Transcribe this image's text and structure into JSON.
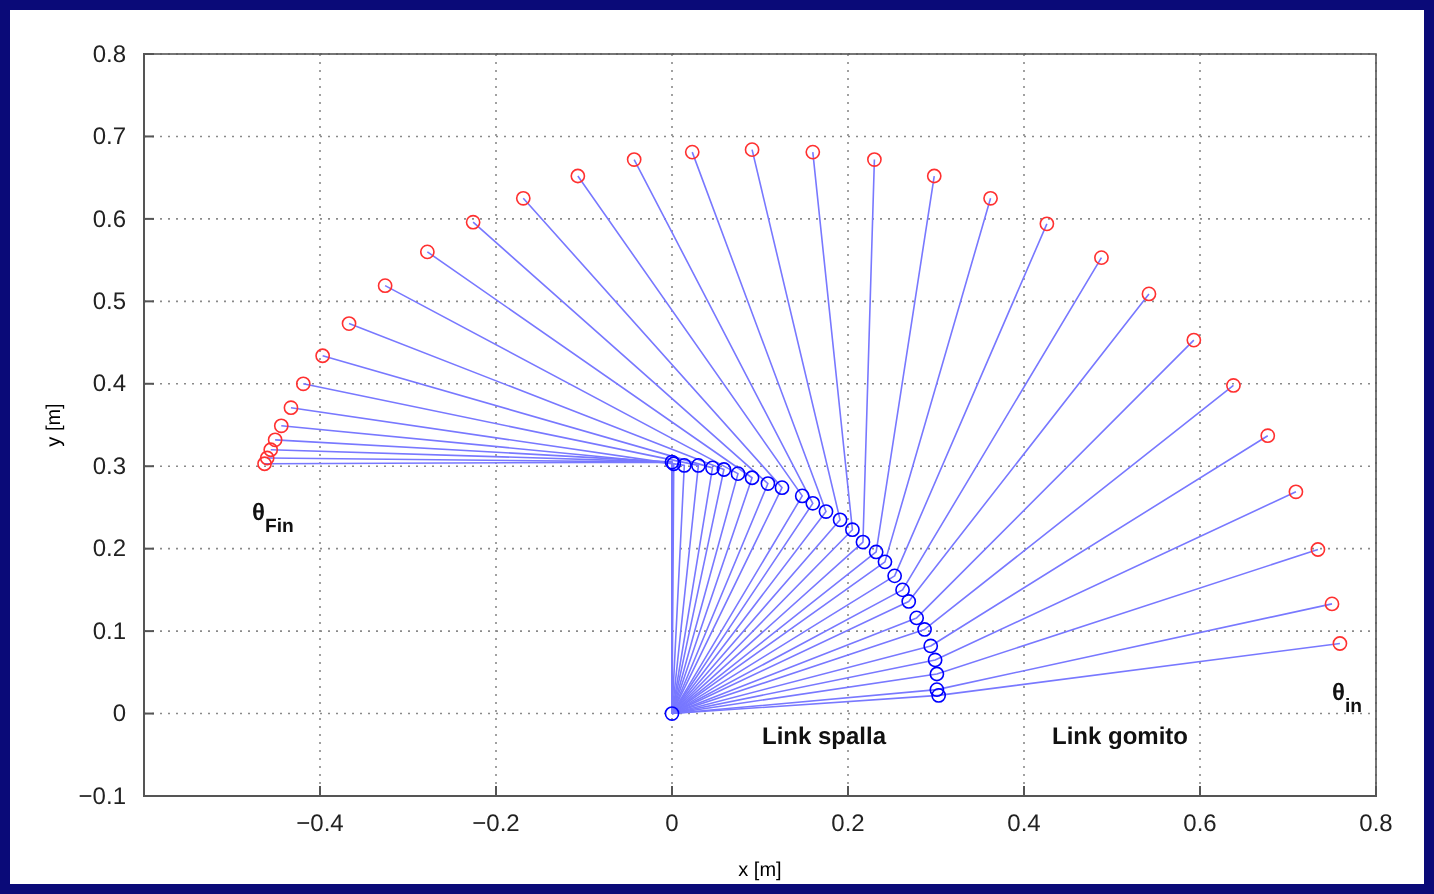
{
  "chart_data": {
    "type": "line",
    "xlabel": "x [m]",
    "ylabel": "y [m]",
    "xlim": [
      -0.6,
      0.8
    ],
    "xticks": [
      -0.4,
      -0.2,
      0,
      0.2,
      0.4,
      0.6,
      0.8
    ],
    "ylim": [
      -0.1,
      0.8
    ],
    "yticks": [
      -0.1,
      0,
      0.1,
      0.2,
      0.3,
      0.4,
      0.5,
      0.6,
      0.7,
      0.8
    ],
    "grid": true,
    "line_style": "solid",
    "annotations": [
      "θ$_{Fin}$",
      "Link spalla",
      "Link gomito",
      "θ$_{in}$"
    ],
    "series": [
      {
        "type": "line",
        "marker": "none",
        "color": "#7878ff",
        "x": [
          0,
          0.303,
          0.759
        ],
        "values": [
          0,
          0.022,
          0.085
        ]
      },
      {
        "type": "line",
        "marker": "none",
        "color": "#7878ff",
        "x": [
          0,
          0.301,
          0.75
        ],
        "values": [
          0,
          0.029,
          0.133
        ]
      },
      {
        "type": "line",
        "marker": "none",
        "color": "#7878ff",
        "x": [
          0,
          0.301,
          0.734
        ],
        "values": [
          0,
          0.048,
          0.199
        ]
      },
      {
        "type": "line",
        "marker": "none",
        "color": "#7878ff",
        "x": [
          0,
          0.299,
          0.709
        ],
        "values": [
          0,
          0.065,
          0.269
        ]
      },
      {
        "type": "line",
        "marker": "none",
        "color": "#7878ff",
        "x": [
          0,
          0.294,
          0.677
        ],
        "values": [
          0,
          0.082,
          0.337
        ]
      },
      {
        "type": "line",
        "marker": "none",
        "color": "#7878ff",
        "x": [
          0,
          0.287,
          0.638
        ],
        "values": [
          0,
          0.102,
          0.398
        ]
      },
      {
        "type": "line",
        "marker": "none",
        "color": "#7878ff",
        "x": [
          0,
          0.278,
          0.593
        ],
        "values": [
          0,
          0.116,
          0.453
        ]
      },
      {
        "type": "line",
        "marker": "none",
        "color": "#7878ff",
        "x": [
          0,
          0.269,
          0.542
        ],
        "values": [
          0,
          0.136,
          0.509
        ]
      },
      {
        "type": "line",
        "marker": "none",
        "color": "#7878ff",
        "x": [
          0,
          0.262,
          0.488
        ],
        "values": [
          0,
          0.15,
          0.553
        ]
      },
      {
        "type": "line",
        "marker": "none",
        "color": "#7878ff",
        "x": [
          0,
          0.253,
          0.426
        ],
        "values": [
          0,
          0.167,
          0.594
        ]
      },
      {
        "type": "line",
        "marker": "none",
        "color": "#7878ff",
        "x": [
          0,
          0.242,
          0.362
        ],
        "values": [
          0,
          0.184,
          0.625
        ]
      },
      {
        "type": "line",
        "marker": "none",
        "color": "#7878ff",
        "x": [
          0,
          0.232,
          0.298
        ],
        "values": [
          0,
          0.196,
          0.652
        ]
      },
      {
        "type": "line",
        "marker": "none",
        "color": "#7878ff",
        "x": [
          0,
          0.217,
          0.23
        ],
        "values": [
          0,
          0.208,
          0.672
        ]
      },
      {
        "type": "line",
        "marker": "none",
        "color": "#7878ff",
        "x": [
          0,
          0.205,
          0.16
        ],
        "values": [
          0,
          0.223,
          0.681
        ]
      },
      {
        "type": "line",
        "marker": "none",
        "color": "#7878ff",
        "x": [
          0,
          0.191,
          0.091
        ],
        "values": [
          0,
          0.235,
          0.684
        ]
      },
      {
        "type": "line",
        "marker": "none",
        "color": "#7878ff",
        "x": [
          0,
          0.175,
          0.023
        ],
        "values": [
          0,
          0.245,
          0.681
        ]
      },
      {
        "type": "line",
        "marker": "none",
        "color": "#7878ff",
        "x": [
          0,
          0.16,
          -0.043
        ],
        "values": [
          0,
          0.255,
          0.672
        ]
      },
      {
        "type": "line",
        "marker": "none",
        "color": "#7878ff",
        "x": [
          0,
          0.148,
          -0.107
        ],
        "values": [
          0,
          0.264,
          0.652
        ]
      },
      {
        "type": "line",
        "marker": "none",
        "color": "#7878ff",
        "x": [
          0,
          0.125,
          -0.169
        ],
        "values": [
          0,
          0.274,
          0.625
        ]
      },
      {
        "type": "line",
        "marker": "none",
        "color": "#7878ff",
        "x": [
          0,
          0.109,
          -0.226
        ],
        "values": [
          0,
          0.279,
          0.596
        ]
      },
      {
        "type": "line",
        "marker": "none",
        "color": "#7878ff",
        "x": [
          0,
          0.091,
          -0.278
        ],
        "values": [
          0,
          0.286,
          0.56
        ]
      },
      {
        "type": "line",
        "marker": "none",
        "color": "#7878ff",
        "x": [
          0,
          0.075,
          -0.326
        ],
        "values": [
          0,
          0.291,
          0.519
        ]
      },
      {
        "type": "line",
        "marker": "none",
        "color": "#7878ff",
        "x": [
          0,
          0.059,
          -0.367
        ],
        "values": [
          0,
          0.296,
          0.473
        ]
      },
      {
        "type": "line",
        "marker": "none",
        "color": "#7878ff",
        "x": [
          0,
          0.046,
          -0.397
        ],
        "values": [
          0,
          0.298,
          0.434
        ]
      },
      {
        "type": "line",
        "marker": "none",
        "color": "#7878ff",
        "x": [
          0,
          0.03,
          -0.419
        ],
        "values": [
          0,
          0.301,
          0.4
        ]
      },
      {
        "type": "line",
        "marker": "none",
        "color": "#7878ff",
        "x": [
          0,
          0.014,
          -0.433
        ],
        "values": [
          0,
          0.301,
          0.371
        ]
      },
      {
        "type": "line",
        "marker": "none",
        "color": "#7878ff",
        "x": [
          0,
          0.002,
          -0.444
        ],
        "values": [
          0,
          0.303,
          0.349
        ]
      },
      {
        "type": "line",
        "marker": "none",
        "color": "#7878ff",
        "x": [
          0,
          0,
          -0.451
        ],
        "values": [
          0,
          0.305,
          0.332
        ]
      },
      {
        "type": "line",
        "marker": "none",
        "color": "#7878ff",
        "x": [
          0,
          0,
          -0.456
        ],
        "values": [
          0,
          0.305,
          0.32
        ]
      },
      {
        "type": "line",
        "marker": "none",
        "color": "#7878ff",
        "x": [
          0,
          0,
          -0.46
        ],
        "values": [
          0,
          0.305,
          0.31
        ]
      },
      {
        "type": "line",
        "marker": "none",
        "color": "#7878ff",
        "x": [
          0,
          0,
          -0.463
        ],
        "values": [
          0,
          0.305,
          0.303
        ]
      },
      {
        "type": "scatter",
        "marker": "circle",
        "color": "#0000ff",
        "x": [
          0,
          0.303,
          0.301,
          0.301,
          0.299,
          0.294,
          0.287,
          0.278,
          0.269,
          0.262,
          0.253,
          0.242,
          0.232,
          0.217,
          0.205,
          0.191,
          0.175,
          0.16,
          0.148,
          0.125,
          0.109,
          0.091,
          0.075,
          0.059,
          0.046,
          0.03,
          0.014,
          0.002,
          0
        ],
        "values": [
          0,
          0.022,
          0.029,
          0.048,
          0.065,
          0.082,
          0.102,
          0.116,
          0.136,
          0.15,
          0.167,
          0.184,
          0.196,
          0.208,
          0.223,
          0.235,
          0.245,
          0.255,
          0.264,
          0.274,
          0.279,
          0.286,
          0.291,
          0.296,
          0.298,
          0.301,
          0.301,
          0.303,
          0.305
        ]
      },
      {
        "type": "scatter",
        "marker": "circle",
        "color": "#ff3030",
        "x": [
          0.759,
          0.75,
          0.734,
          0.709,
          0.677,
          0.638,
          0.593,
          0.542,
          0.488,
          0.426,
          0.362,
          0.298,
          0.23,
          0.16,
          0.091,
          0.023,
          -0.043,
          -0.107,
          -0.169,
          -0.226,
          -0.278,
          -0.326,
          -0.367,
          -0.397,
          -0.419,
          -0.433,
          -0.444,
          -0.451,
          -0.456,
          -0.46,
          -0.463
        ],
        "values": [
          0.085,
          0.133,
          0.199,
          0.269,
          0.337,
          0.398,
          0.453,
          0.509,
          0.553,
          0.594,
          0.625,
          0.652,
          0.672,
          0.681,
          0.684,
          0.681,
          0.672,
          0.652,
          0.625,
          0.596,
          0.56,
          0.519,
          0.473,
          0.434,
          0.4,
          0.371,
          0.349,
          0.332,
          0.32,
          0.31,
          0.303
        ]
      }
    ]
  }
}
